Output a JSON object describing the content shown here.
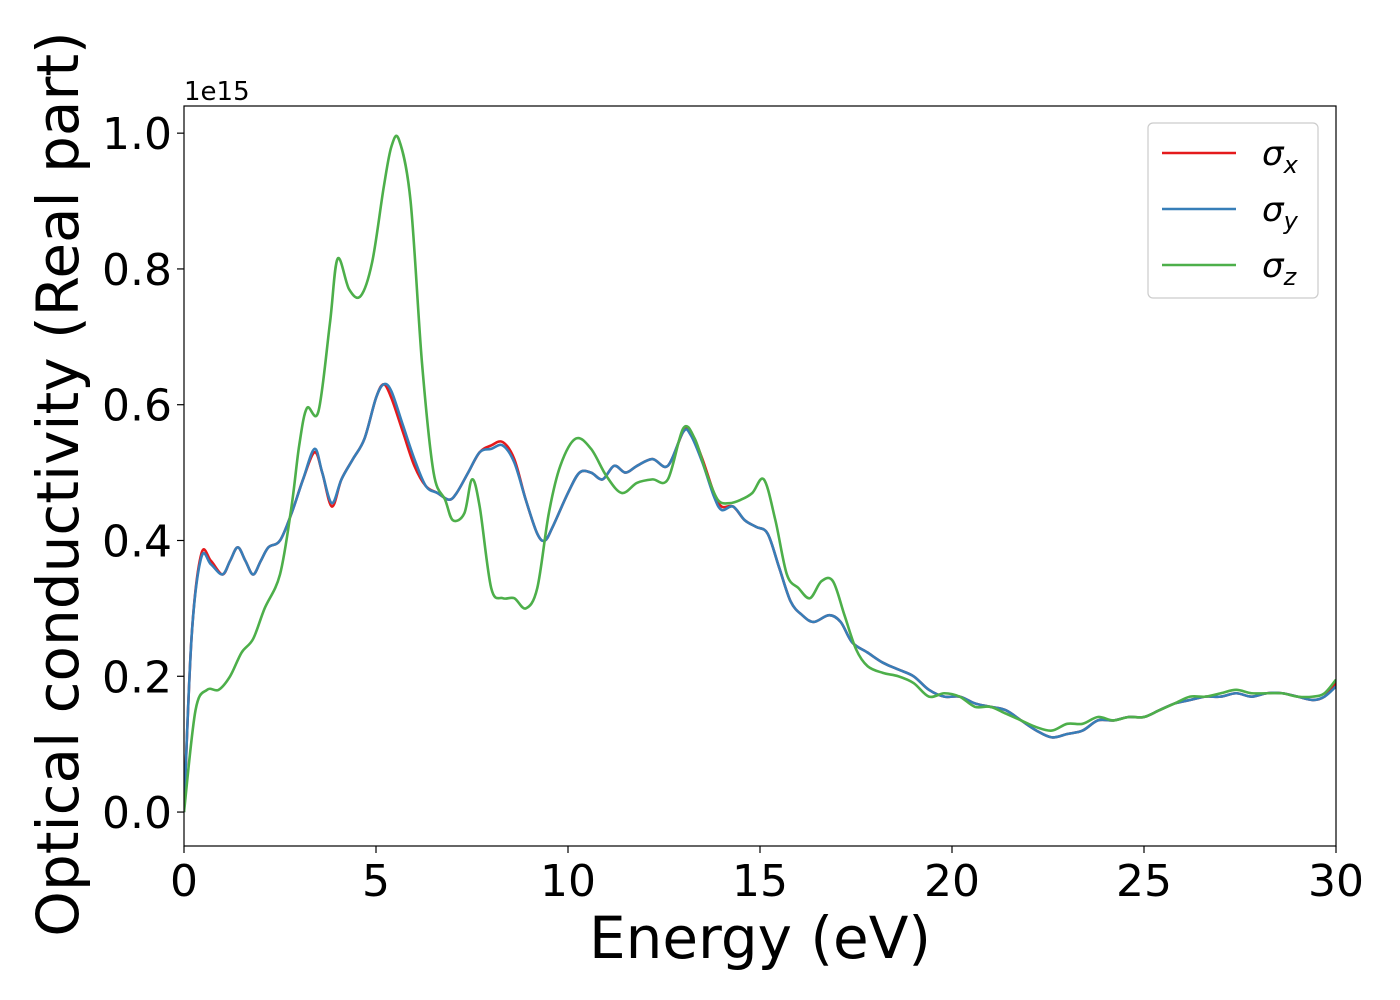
{
  "chart_data": {
    "type": "line",
    "xlabel": "Energy (eV)",
    "ylabel": "Optical conductivity (Real part)",
    "y_offset_label": "1e15",
    "xlim": [
      0,
      30
    ],
    "ylim": [
      -0.05,
      1.04
    ],
    "xticks": [
      0,
      5,
      10,
      15,
      20,
      25,
      30
    ],
    "xtick_labels": [
      "0",
      "5",
      "10",
      "15",
      "20",
      "25",
      "30"
    ],
    "yticks": [
      0.0,
      0.2,
      0.4,
      0.6,
      0.8,
      1.0
    ],
    "ytick_labels": [
      "0.0",
      "0.2",
      "0.4",
      "0.6",
      "0.8",
      "1.0"
    ],
    "grid": false,
    "legend_position": "upper right",
    "series": [
      {
        "name": "σx",
        "legend_base": "σ",
        "legend_sub": "x",
        "color": "#e41a1c",
        "x": [
          0,
          0.2,
          0.45,
          0.7,
          1.0,
          1.2,
          1.4,
          1.6,
          1.8,
          2.0,
          2.2,
          2.5,
          2.8,
          3.1,
          3.4,
          3.6,
          3.85,
          4.1,
          4.4,
          4.7,
          5.0,
          5.2,
          5.4,
          5.7,
          6.0,
          6.3,
          6.6,
          6.9,
          7.1,
          7.4,
          7.7,
          8.0,
          8.3,
          8.6,
          8.9,
          9.2,
          9.4,
          9.6,
          10.0,
          10.3,
          10.6,
          10.9,
          11.2,
          11.5,
          11.8,
          12.2,
          12.6,
          13.0,
          13.2,
          13.5,
          13.8,
          14.0,
          14.3,
          14.6,
          14.9,
          15.2,
          15.5,
          15.8,
          16.1,
          16.4,
          16.8,
          17.1,
          17.4,
          17.8,
          18.2,
          18.6,
          19.0,
          19.4,
          19.8,
          20.2,
          20.6,
          21.0,
          21.4,
          21.8,
          22.2,
          22.6,
          23.0,
          23.4,
          23.8,
          24.2,
          24.6,
          25.0,
          25.4,
          25.8,
          26.2,
          26.6,
          27.0,
          27.4,
          27.8,
          28.2,
          28.6,
          29.0,
          29.4,
          29.7,
          30.0
        ],
        "y": [
          0.0,
          0.26,
          0.38,
          0.37,
          0.35,
          0.37,
          0.39,
          0.37,
          0.35,
          0.37,
          0.39,
          0.4,
          0.44,
          0.49,
          0.53,
          0.5,
          0.45,
          0.49,
          0.52,
          0.55,
          0.61,
          0.63,
          0.61,
          0.56,
          0.51,
          0.48,
          0.47,
          0.46,
          0.47,
          0.5,
          0.53,
          0.54,
          0.545,
          0.52,
          0.46,
          0.41,
          0.4,
          0.42,
          0.47,
          0.5,
          0.5,
          0.49,
          0.51,
          0.5,
          0.51,
          0.52,
          0.51,
          0.56,
          0.56,
          0.52,
          0.47,
          0.45,
          0.45,
          0.43,
          0.42,
          0.41,
          0.36,
          0.31,
          0.29,
          0.28,
          0.29,
          0.28,
          0.25,
          0.235,
          0.22,
          0.21,
          0.2,
          0.18,
          0.17,
          0.17,
          0.16,
          0.155,
          0.15,
          0.135,
          0.12,
          0.11,
          0.115,
          0.12,
          0.135,
          0.135,
          0.14,
          0.14,
          0.15,
          0.16,
          0.165,
          0.17,
          0.17,
          0.175,
          0.17,
          0.175,
          0.175,
          0.17,
          0.165,
          0.17,
          0.19
        ]
      },
      {
        "name": "σy",
        "legend_base": "σ",
        "legend_sub": "y",
        "color": "#377eb8",
        "x": [
          0,
          0.2,
          0.45,
          0.7,
          1.0,
          1.2,
          1.4,
          1.6,
          1.8,
          2.0,
          2.2,
          2.5,
          2.8,
          3.1,
          3.4,
          3.6,
          3.85,
          4.1,
          4.4,
          4.7,
          5.0,
          5.2,
          5.4,
          5.7,
          6.0,
          6.3,
          6.6,
          6.9,
          7.1,
          7.4,
          7.7,
          8.0,
          8.3,
          8.6,
          8.9,
          9.2,
          9.4,
          9.6,
          10.0,
          10.3,
          10.6,
          10.9,
          11.2,
          11.5,
          11.8,
          12.2,
          12.6,
          13.0,
          13.2,
          13.5,
          13.8,
          14.0,
          14.3,
          14.6,
          14.9,
          15.2,
          15.5,
          15.8,
          16.1,
          16.4,
          16.8,
          17.1,
          17.4,
          17.8,
          18.2,
          18.6,
          19.0,
          19.4,
          19.8,
          20.2,
          20.6,
          21.0,
          21.4,
          21.8,
          22.2,
          22.6,
          23.0,
          23.4,
          23.8,
          24.2,
          24.6,
          25.0,
          25.4,
          25.8,
          26.2,
          26.6,
          27.0,
          27.4,
          27.8,
          28.2,
          28.6,
          29.0,
          29.4,
          29.7,
          30.0
        ],
        "y": [
          0.0,
          0.26,
          0.375,
          0.365,
          0.35,
          0.37,
          0.39,
          0.37,
          0.35,
          0.37,
          0.39,
          0.4,
          0.44,
          0.49,
          0.535,
          0.5,
          0.455,
          0.49,
          0.52,
          0.55,
          0.61,
          0.63,
          0.62,
          0.57,
          0.52,
          0.48,
          0.47,
          0.46,
          0.47,
          0.5,
          0.53,
          0.535,
          0.54,
          0.515,
          0.46,
          0.41,
          0.4,
          0.42,
          0.47,
          0.5,
          0.5,
          0.49,
          0.51,
          0.5,
          0.51,
          0.52,
          0.51,
          0.56,
          0.555,
          0.515,
          0.465,
          0.445,
          0.45,
          0.43,
          0.42,
          0.41,
          0.36,
          0.31,
          0.29,
          0.28,
          0.29,
          0.28,
          0.25,
          0.235,
          0.22,
          0.21,
          0.2,
          0.18,
          0.17,
          0.17,
          0.16,
          0.155,
          0.15,
          0.135,
          0.12,
          0.11,
          0.115,
          0.12,
          0.135,
          0.135,
          0.14,
          0.14,
          0.15,
          0.16,
          0.165,
          0.17,
          0.17,
          0.175,
          0.17,
          0.175,
          0.175,
          0.17,
          0.165,
          0.17,
          0.185
        ]
      },
      {
        "name": "σz",
        "legend_base": "σ",
        "legend_sub": "z",
        "color": "#4daf4a",
        "x": [
          0,
          0.3,
          0.6,
          0.9,
          1.2,
          1.5,
          1.8,
          2.1,
          2.5,
          2.8,
          3.0,
          3.2,
          3.5,
          3.8,
          4.0,
          4.3,
          4.6,
          4.9,
          5.2,
          5.4,
          5.6,
          5.9,
          6.2,
          6.5,
          6.8,
          7.0,
          7.3,
          7.5,
          7.7,
          8.0,
          8.3,
          8.6,
          8.9,
          9.2,
          9.5,
          9.8,
          10.2,
          10.6,
          11.0,
          11.4,
          11.8,
          12.2,
          12.6,
          13.0,
          13.3,
          13.6,
          13.9,
          14.2,
          14.5,
          14.8,
          15.1,
          15.4,
          15.7,
          16.0,
          16.3,
          16.6,
          16.9,
          17.2,
          17.5,
          17.8,
          18.2,
          18.6,
          19.0,
          19.4,
          19.8,
          20.2,
          20.6,
          21.0,
          21.4,
          21.8,
          22.2,
          22.6,
          23.0,
          23.4,
          23.8,
          24.2,
          24.6,
          25.0,
          25.4,
          25.8,
          26.2,
          26.6,
          27.0,
          27.4,
          27.8,
          28.2,
          28.6,
          29.0,
          29.4,
          29.7,
          30.0
        ],
        "y": [
          0.0,
          0.15,
          0.18,
          0.18,
          0.2,
          0.235,
          0.255,
          0.3,
          0.35,
          0.45,
          0.54,
          0.595,
          0.59,
          0.72,
          0.815,
          0.77,
          0.76,
          0.81,
          0.92,
          0.98,
          0.99,
          0.9,
          0.66,
          0.5,
          0.46,
          0.43,
          0.44,
          0.49,
          0.45,
          0.33,
          0.315,
          0.315,
          0.3,
          0.33,
          0.44,
          0.51,
          0.55,
          0.535,
          0.495,
          0.47,
          0.485,
          0.49,
          0.49,
          0.565,
          0.55,
          0.5,
          0.46,
          0.455,
          0.46,
          0.47,
          0.49,
          0.43,
          0.35,
          0.33,
          0.315,
          0.34,
          0.34,
          0.29,
          0.24,
          0.215,
          0.205,
          0.2,
          0.19,
          0.17,
          0.175,
          0.17,
          0.155,
          0.155,
          0.145,
          0.135,
          0.125,
          0.12,
          0.13,
          0.13,
          0.14,
          0.135,
          0.14,
          0.14,
          0.15,
          0.16,
          0.17,
          0.17,
          0.175,
          0.18,
          0.175,
          0.175,
          0.175,
          0.17,
          0.17,
          0.175,
          0.195
        ]
      }
    ]
  }
}
